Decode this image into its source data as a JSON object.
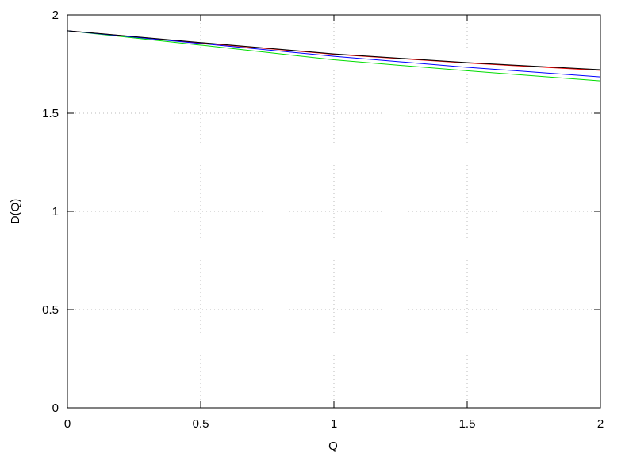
{
  "chart_data": {
    "type": "line",
    "x_label": "Q",
    "y_label": "D(Q)",
    "x": [
      0,
      0.5,
      1,
      1.5,
      2
    ],
    "series": [
      {
        "color": "#ff0000",
        "values": [
          1.92,
          1.858,
          1.8,
          1.756,
          1.718
        ]
      },
      {
        "color": "#00dd00",
        "values": [
          1.92,
          1.847,
          1.772,
          1.716,
          1.665
        ]
      },
      {
        "color": "#0000ff",
        "values": [
          1.92,
          1.855,
          1.79,
          1.734,
          1.685
        ]
      },
      {
        "color": "#000000",
        "values": [
          1.92,
          1.86,
          1.802,
          1.758,
          1.722
        ]
      }
    ],
    "xlim": [
      0,
      2
    ],
    "ylim": [
      0,
      2
    ],
    "xticks": [
      0,
      0.5,
      1,
      1.5,
      2
    ],
    "yticks": [
      0,
      0.5,
      1,
      1.5,
      2
    ],
    "grid": true
  }
}
